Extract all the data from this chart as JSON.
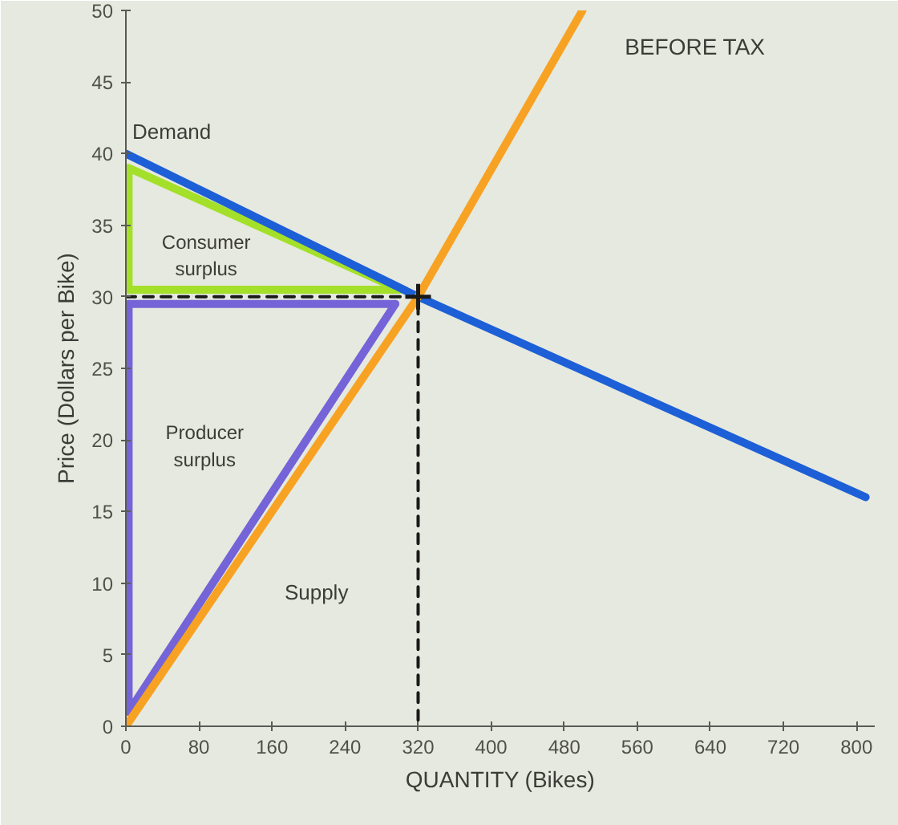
{
  "chart_data": {
    "type": "line",
    "title": "BEFORE TAX",
    "xlabel": "QUANTITY (Bikes)",
    "ylabel": "Price (Dollars per Bike)",
    "xlim": [
      0,
      820
    ],
    "ylim": [
      0,
      50
    ],
    "xticks": [
      0,
      80,
      160,
      240,
      320,
      400,
      480,
      560,
      640,
      720,
      800
    ],
    "yticks": [
      0,
      5,
      10,
      15,
      20,
      25,
      30,
      35,
      40,
      45,
      50
    ],
    "grid": false,
    "series": [
      {
        "name": "Consumer surplus",
        "color": "#a4e02a",
        "x": [
          3,
          3,
          300
        ],
        "values": [
          30.5,
          39,
          30.5
        ]
      },
      {
        "color": "#a4e02a",
        "x": [
          3,
          300
        ],
        "values": [
          30.5,
          30.5
        ]
      },
      {
        "name": "Producer surplus",
        "color": "#7464d8",
        "x": [
          3,
          3,
          295
        ],
        "values": [
          29.5,
          1,
          29.5
        ]
      },
      {
        "color": "#7464d8",
        "x": [
          3,
          295
        ],
        "values": [
          29.5,
          29.5
        ]
      },
      {
        "color": "#1a1a1a",
        "line_style": "dashed",
        "x": [
          0,
          320,
          320
        ],
        "values": [
          30,
          30,
          0
        ]
      },
      {
        "name": "Demand",
        "color": "#1d5fd6",
        "x": [
          0,
          320,
          810
        ],
        "values": [
          40,
          30,
          16
        ]
      },
      {
        "name": "Supply",
        "color": "#f7a223",
        "x": [
          0,
          320,
          500
        ],
        "values": [
          0,
          30,
          50
        ]
      },
      {
        "type": "scatter",
        "marker": "cross",
        "color": "#1a1a1a",
        "x": [
          320
        ],
        "values": [
          30
        ]
      }
    ]
  }
}
